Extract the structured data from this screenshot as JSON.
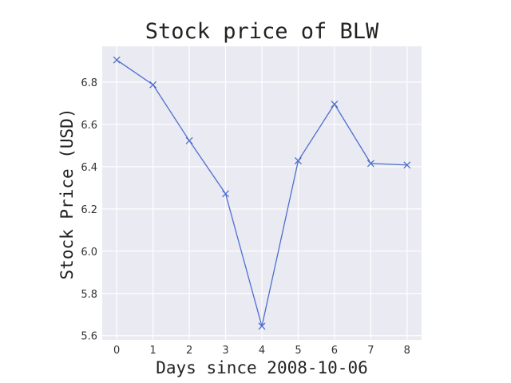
{
  "chart_data": {
    "type": "line",
    "title": "Stock price of BLW",
    "xlabel": "Days since 2008-10-06",
    "ylabel": "Stock Price (USD)",
    "x": [
      0,
      1,
      2,
      3,
      4,
      5,
      6,
      7,
      8
    ],
    "series": [
      {
        "values": [
          6.905,
          6.788,
          6.523,
          6.272,
          5.645,
          6.428,
          6.696,
          6.415,
          6.408
        ],
        "color": "#4c6fcf",
        "marker": "x"
      }
    ],
    "xlim": [
      -0.4,
      8.4
    ],
    "ylim": [
      5.58,
      6.97
    ],
    "xticks": [
      0,
      1,
      2,
      3,
      4,
      5,
      6,
      7,
      8
    ],
    "xtick_labels": [
      "0",
      "1",
      "2",
      "3",
      "4",
      "5",
      "6",
      "7",
      "8"
    ],
    "yticks": [
      5.6,
      5.8,
      6.0,
      6.2,
      6.4,
      6.6,
      6.8
    ],
    "ytick_labels": [
      "5.6",
      "5.8",
      "6.0",
      "6.2",
      "6.4",
      "6.6",
      "6.8"
    ],
    "grid": true,
    "background": "#eaeaf2",
    "grid_color": "#ffffff"
  }
}
